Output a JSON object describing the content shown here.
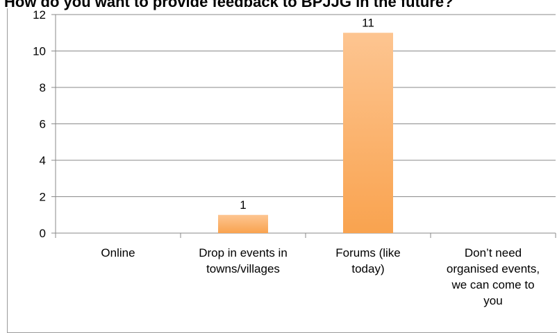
{
  "chart_data": {
    "type": "bar",
    "title": "How do you want to provide feedback to BPJJG in the future?",
    "categories": [
      [
        "Online"
      ],
      [
        "Drop in events in",
        "towns/villages"
      ],
      [
        "Forums (like",
        "today)"
      ],
      [
        "Don’t need",
        "organised events,",
        "we can come to",
        "you"
      ]
    ],
    "values": [
      0,
      1,
      11,
      0
    ],
    "data_labels": [
      "",
      "1",
      "11",
      ""
    ],
    "yticks": [
      0,
      2,
      4,
      6,
      8,
      10,
      12
    ],
    "ylim": [
      0,
      12
    ],
    "grid": true,
    "legend": "none",
    "bar_color_top": "#fdc591",
    "bar_color_bottom": "#f9a34f"
  }
}
